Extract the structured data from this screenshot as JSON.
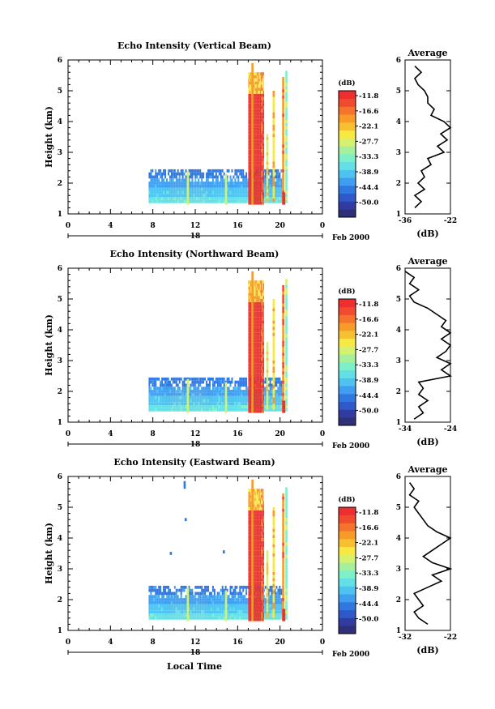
{
  "chart_data": [
    {
      "type": "heatmap",
      "title": "Echo Intensity (Vertical Beam)",
      "ylabel": "Height (km)",
      "xlim": [
        0,
        24
      ],
      "ylim": [
        1,
        6
      ],
      "xticks": [
        "0",
        "4",
        "8",
        "12",
        "16",
        "20",
        "0"
      ],
      "yticks": [
        "1",
        "2",
        "3",
        "4",
        "5",
        "6"
      ],
      "date_day": "18",
      "date_month": "Feb 2000",
      "colorbar_unit": "(dB)",
      "colorbar_labels": [
        "-11.8",
        "-16.6",
        "-22.1",
        "-27.7",
        "-33.3",
        "-38.9",
        "-44.4",
        "-50.0"
      ],
      "profile": {
        "title": "Average",
        "xlabel": "(dB)",
        "xticks": [
          "-36",
          "-22"
        ],
        "xlim": [
          -36,
          -22
        ],
        "heights": [
          1.2,
          1.4,
          1.6,
          1.8,
          2.0,
          2.2,
          2.4,
          2.6,
          2.8,
          3.0,
          3.2,
          3.4,
          3.6,
          3.8,
          4.0,
          4.2,
          4.4,
          4.6,
          4.8,
          5.0,
          5.2,
          5.4,
          5.6,
          5.8
        ],
        "values": [
          -33,
          -31,
          -33,
          -30,
          -32,
          -30,
          -31,
          -28,
          -29,
          -24,
          -26,
          -23,
          -25,
          -22,
          -24,
          -28,
          -27,
          -29,
          -29,
          -30,
          -32,
          -33,
          -31,
          -33
        ]
      }
    },
    {
      "type": "heatmap",
      "title": "Echo Intensity (Northward Beam)",
      "ylabel": "Height (km)",
      "xlim": [
        0,
        24
      ],
      "ylim": [
        1,
        6
      ],
      "xticks": [
        "0",
        "4",
        "8",
        "12",
        "16",
        "20",
        "0"
      ],
      "yticks": [
        "1",
        "2",
        "3",
        "4",
        "5",
        "6"
      ],
      "date_day": "18",
      "date_month": "Feb 2000",
      "colorbar_unit": "(dB)",
      "colorbar_labels": [
        "-11.8",
        "-16.6",
        "-22.1",
        "-27.7",
        "-33.3",
        "-38.9",
        "-44.4",
        "-50.0"
      ],
      "profile": {
        "title": "Average",
        "xlabel": "(dB)",
        "xticks": [
          "-34",
          "-24"
        ],
        "xlim": [
          -34,
          -24
        ],
        "heights": [
          1.1,
          1.3,
          1.5,
          1.7,
          1.9,
          2.1,
          2.3,
          2.5,
          2.7,
          2.9,
          3.1,
          3.3,
          3.5,
          3.7,
          3.9,
          4.1,
          4.3,
          4.5,
          4.7,
          4.9,
          5.1,
          5.3,
          5.5,
          5.7,
          5.9
        ],
        "values": [
          -32,
          -30,
          -31,
          -29,
          -31,
          -30,
          -31,
          -24,
          -26,
          -24,
          -27,
          -25,
          -24,
          -26,
          -24,
          -26,
          -25,
          -27,
          -29,
          -32,
          -33,
          -31,
          -33,
          -32,
          -34
        ]
      }
    },
    {
      "type": "heatmap",
      "title": "Echo Intensity (Eastward Beam)",
      "ylabel": "Height (km)",
      "xlabel": "Local Time",
      "xlim": [
        0,
        24
      ],
      "ylim": [
        1,
        6
      ],
      "xticks": [
        "0",
        "4",
        "8",
        "12",
        "16",
        "20",
        "0"
      ],
      "yticks": [
        "1",
        "2",
        "3",
        "4",
        "5",
        "6"
      ],
      "date_day": "18",
      "date_month": "Feb 2000",
      "colorbar_unit": "(dB)",
      "colorbar_labels": [
        "-11.8",
        "-16.6",
        "-22.1",
        "-27.7",
        "-33.3",
        "-38.9",
        "-44.4",
        "-50.0"
      ],
      "profile": {
        "title": "Average",
        "xlabel": "(dB)",
        "xticks": [
          "-32",
          "-22"
        ],
        "xlim": [
          -32,
          -22
        ],
        "heights": [
          1.2,
          1.4,
          1.6,
          1.8,
          2.0,
          2.2,
          2.4,
          2.6,
          2.8,
          3.0,
          3.2,
          3.4,
          3.6,
          3.8,
          4.0,
          4.2,
          4.4,
          4.6,
          4.8,
          5.0,
          5.2,
          5.4,
          5.6,
          5.8
        ],
        "values": [
          -27,
          -29,
          -30,
          -28,
          -29,
          -30,
          -27,
          -24,
          -26,
          -22,
          -26,
          -28,
          -26,
          -24,
          -22,
          -25,
          -27,
          -28,
          -29,
          -30,
          -29,
          -31,
          -30,
          -31
        ]
      }
    }
  ]
}
